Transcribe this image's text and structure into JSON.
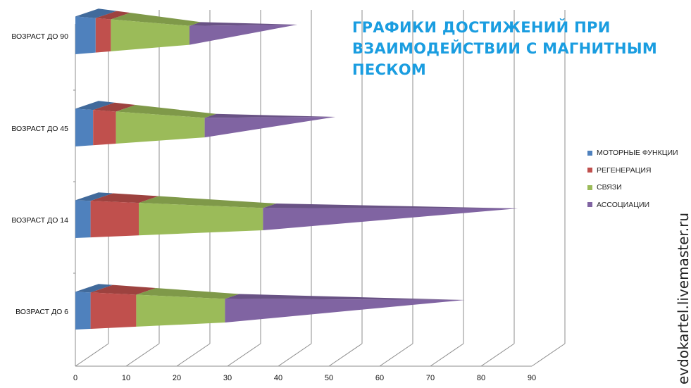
{
  "title": "ГРАФИКИ ДОСТИЖЕНИЙ ПРИ ВЗАИМОДЕЙСТВИИ С МАГНИТНЫМ ПЕСКОМ",
  "watermark": "evdokartel.livemaster.ru",
  "chart_data": {
    "type": "bar",
    "orientation": "horizontal",
    "stacked": true,
    "style": "3d-cone",
    "title": "ГРАФИКИ ДОСТИЖЕНИЙ ПРИ ВЗАИМОДЕЙСТВИИ С МАГНИТНЫМ ПЕСКОМ",
    "categories": [
      "ВОЗРАСТ ДО 6",
      "ВОЗРАСТ ДО 14",
      "ВОЗРАСТ ДО 45",
      "ВОЗРАСТ ДО 90"
    ],
    "series": [
      {
        "name": "МОТОРНЫЕ ФУНКЦИИ",
        "color": "#4f81bd",
        "values": [
          3,
          3,
          3.5,
          4
        ]
      },
      {
        "name": "РЕГЕНЕРАЦИЯ",
        "color": "#c0504d",
        "values": [
          9,
          9.5,
          4.5,
          3
        ]
      },
      {
        "name": "СВЯЗИ",
        "color": "#9bbb59",
        "values": [
          17.5,
          24.5,
          17.5,
          15.5
        ]
      },
      {
        "name": "АССОЦИАЦИИ",
        "color": "#8064a2",
        "values": [
          44,
          47,
          22.5,
          18
        ]
      }
    ],
    "x_ticks": [
      "0",
      "10",
      "20",
      "30",
      "40",
      "50",
      "60",
      "70",
      "80",
      "90"
    ],
    "xlim": [
      0,
      90
    ],
    "grid": true,
    "legend_position": "right"
  }
}
